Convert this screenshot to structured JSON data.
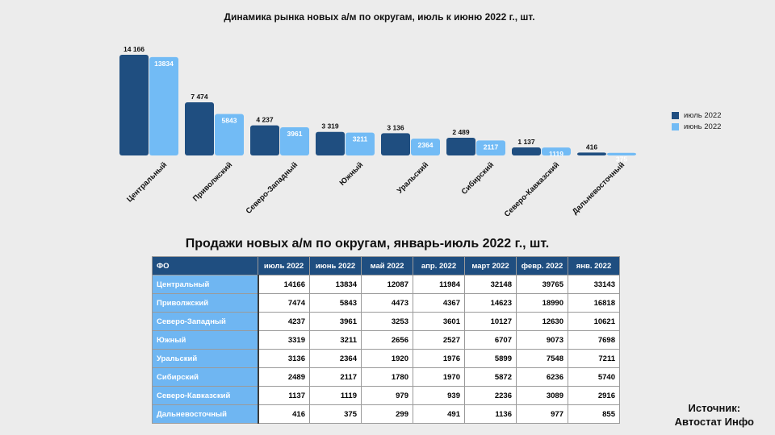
{
  "chart_data": {
    "type": "bar",
    "title": "Динамика рынка новых а/м по округам, июль к июню 2022 г., шт.",
    "categories": [
      "Центральный",
      "Приволжский",
      "Северо-Западный",
      "Южный",
      "Уральский",
      "Сибирский",
      "Северо-Кавказский",
      "Дальневосточный"
    ],
    "series": [
      {
        "name": "июль 2022",
        "values": [
          14166,
          7474,
          4237,
          3319,
          3136,
          2489,
          1137,
          416
        ],
        "labels": [
          "14 166",
          "7 474",
          "4 237",
          "3 319",
          "3 136",
          "2 489",
          "1 137",
          "416"
        ],
        "color": "#1f4e80"
      },
      {
        "name": "июнь 2022",
        "values": [
          13834,
          5843,
          3961,
          3211,
          2364,
          2117,
          1119,
          375
        ],
        "labels": [
          "13834",
          "5843",
          "3961",
          "3211",
          "2364",
          "2117",
          "1119",
          "375"
        ],
        "color": "#72bbf5"
      }
    ],
    "legend": "right",
    "grid": false
  },
  "table": {
    "title": "Продажи новых а/м по округам, январь-июль 2022 г., шт.",
    "headers": [
      "ФО",
      "июль 2022",
      "июнь 2022",
      "май 2022",
      "апр. 2022",
      "март 2022",
      "февр. 2022",
      "янв. 2022"
    ],
    "rows": [
      {
        "name": "Центральный",
        "values": [
          "14166",
          "13834",
          "12087",
          "11984",
          "32148",
          "39765",
          "33143"
        ]
      },
      {
        "name": "Приволжский",
        "values": [
          "7474",
          "5843",
          "4473",
          "4367",
          "14623",
          "18990",
          "16818"
        ]
      },
      {
        "name": "Северо-Западный",
        "values": [
          "4237",
          "3961",
          "3253",
          "3601",
          "10127",
          "12630",
          "10621"
        ]
      },
      {
        "name": "Южный",
        "values": [
          "3319",
          "3211",
          "2656",
          "2527",
          "6707",
          "9073",
          "7698"
        ]
      },
      {
        "name": "Уральский",
        "values": [
          "3136",
          "2364",
          "1920",
          "1976",
          "5899",
          "7548",
          "7211"
        ]
      },
      {
        "name": "Сибирский",
        "values": [
          "2489",
          "2117",
          "1780",
          "1970",
          "5872",
          "6236",
          "5740"
        ]
      },
      {
        "name": "Северо-Кавказский",
        "values": [
          "1137",
          "1119",
          "979",
          "939",
          "2236",
          "3089",
          "2916"
        ]
      },
      {
        "name": "Дальневосточный",
        "values": [
          "416",
          "375",
          "299",
          "491",
          "1136",
          "977",
          "855"
        ]
      }
    ]
  },
  "source": {
    "line1": "Источник:",
    "line2": "Автостат Инфо"
  }
}
